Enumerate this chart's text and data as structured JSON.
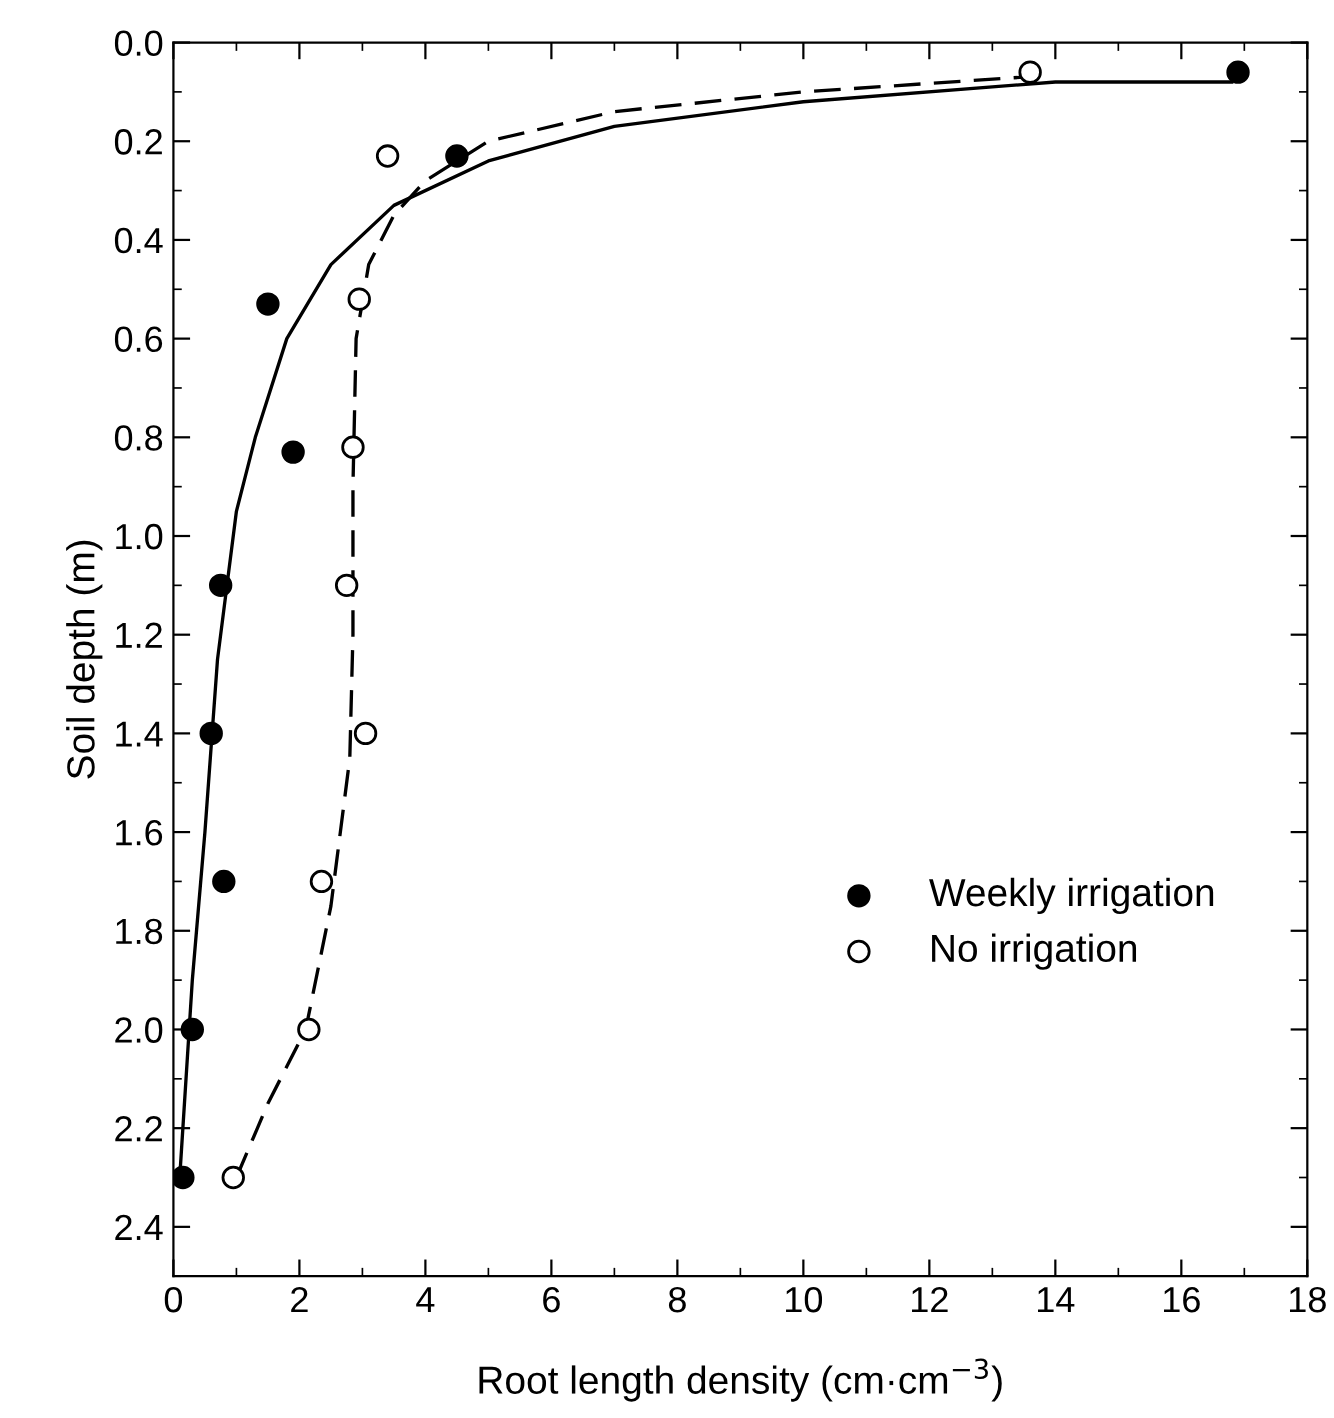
{
  "chart_data": {
    "type": "scatter",
    "xlabel": "Root length density (cm·cm$^{−3}$)",
    "ylabel": "Soil depth (m)",
    "xlim": [
      0,
      18
    ],
    "xticks": [
      0,
      2,
      4,
      6,
      8,
      10,
      12,
      14,
      16,
      18
    ],
    "ylim": [
      2.5,
      0
    ],
    "yticks": [
      {
        "value": 0,
        "label": "0.0"
      },
      {
        "value": 0.2,
        "label": "0.2"
      },
      {
        "value": 0.4,
        "label": "0.4"
      },
      {
        "value": 0.6,
        "label": "0.6"
      },
      {
        "value": 0.8,
        "label": "0.8"
      },
      {
        "value": 1.0,
        "label": "1.0"
      },
      {
        "value": 1.2,
        "label": "1.2"
      },
      {
        "value": 1.4,
        "label": "1.4"
      },
      {
        "value": 1.6,
        "label": "1.6"
      },
      {
        "value": 1.8,
        "label": "1.8"
      },
      {
        "value": 2.0,
        "label": "2.0"
      },
      {
        "value": 2.2,
        "label": "2.2"
      },
      {
        "value": 2.4,
        "label": "2.4"
      }
    ],
    "grid": false,
    "legend": "bottom right",
    "marker": "circle",
    "series": [
      {
        "name": "Weekly irrigation",
        "color": "#000000",
        "x": [
          16.9,
          4.5,
          1.5,
          1.9,
          0.75,
          0.6,
          0.8,
          0.3,
          0.15
        ],
        "values": [
          0.06,
          0.23,
          0.53,
          0.83,
          1.1,
          1.4,
          1.7,
          2.0,
          2.3
        ]
      },
      {
        "name": "No irrigation",
        "color": "#ffffff",
        "x": [
          13.6,
          3.4,
          2.95,
          2.85,
          2.75,
          3.05,
          2.35,
          2.15,
          0.95
        ],
        "values": [
          0.06,
          0.23,
          0.52,
          0.82,
          1.1,
          1.4,
          1.7,
          2.0,
          2.3
        ]
      },
      {
        "type": "line",
        "color": "#000000",
        "line_style": "solid",
        "marker": "none",
        "x": [
          0.1,
          0.3,
          0.5,
          0.7,
          1.0,
          1.3,
          1.8,
          2.5,
          3.5,
          5,
          7,
          10,
          13,
          14,
          16.8
        ],
        "values": [
          2.3,
          1.9,
          1.6,
          1.25,
          0.95,
          0.8,
          0.6,
          0.45,
          0.33,
          0.24,
          0.17,
          0.12,
          0.09,
          0.08,
          0.08
        ]
      },
      {
        "type": "line",
        "color": "#000000",
        "line_style": "dashed",
        "marker": "none",
        "x": [
          1.0,
          1.5,
          2.1,
          2.5,
          2.8,
          2.85,
          2.85,
          2.9,
          3.1,
          3.5,
          4,
          5,
          7,
          10,
          13.5
        ],
        "values": [
          2.3,
          2.15,
          2.0,
          1.75,
          1.45,
          1.2,
          0.9,
          0.6,
          0.45,
          0.35,
          0.28,
          0.2,
          0.14,
          0.1,
          0.07
        ]
      }
    ]
  }
}
